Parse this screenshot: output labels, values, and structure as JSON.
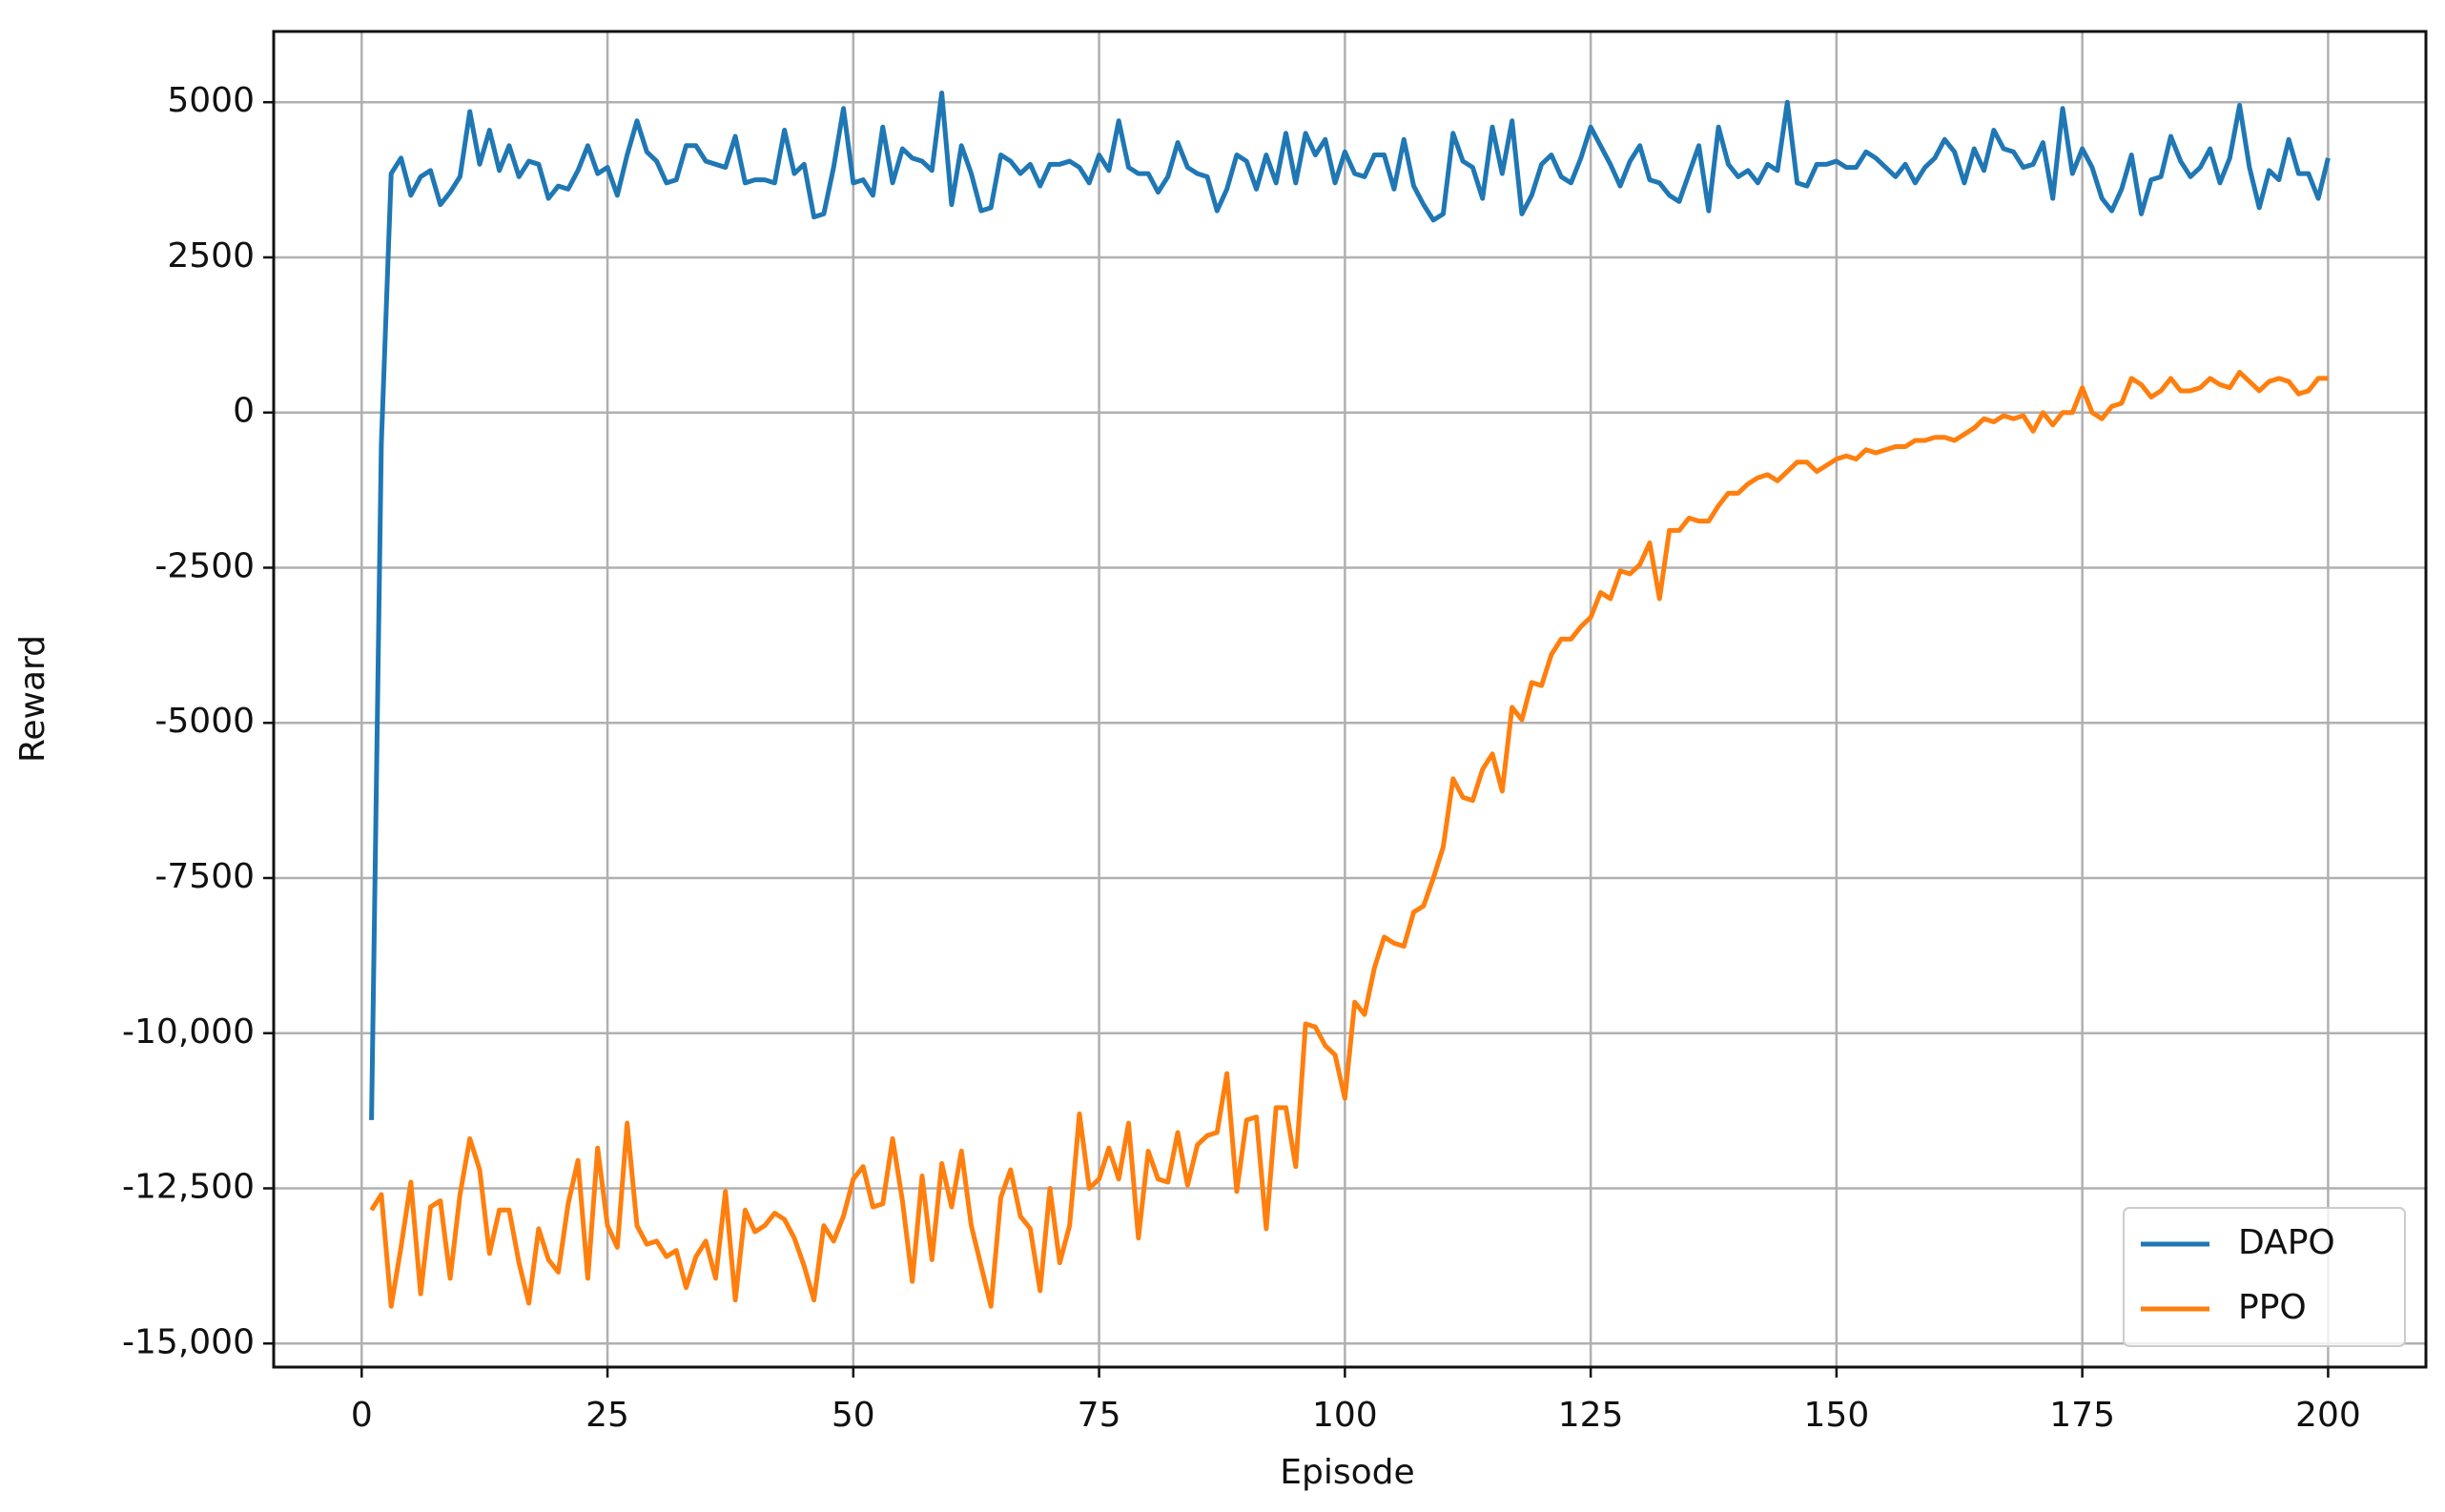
{
  "chart_data": {
    "type": "line",
    "xlabel": "Episode",
    "ylabel": "Reward",
    "x": [
      1,
      2,
      3,
      4,
      5,
      6,
      7,
      8,
      9,
      10,
      11,
      12,
      13,
      14,
      15,
      16,
      17,
      18,
      19,
      20,
      21,
      22,
      23,
      24,
      25,
      26,
      27,
      28,
      29,
      30,
      31,
      32,
      33,
      34,
      35,
      36,
      37,
      38,
      39,
      40,
      41,
      42,
      43,
      44,
      45,
      46,
      47,
      48,
      49,
      50,
      51,
      52,
      53,
      54,
      55,
      56,
      57,
      58,
      59,
      60,
      61,
      62,
      63,
      64,
      65,
      66,
      67,
      68,
      69,
      70,
      71,
      72,
      73,
      74,
      75,
      76,
      77,
      78,
      79,
      80,
      81,
      82,
      83,
      84,
      85,
      86,
      87,
      88,
      89,
      90,
      91,
      92,
      93,
      94,
      95,
      96,
      97,
      98,
      99,
      100,
      101,
      102,
      103,
      104,
      105,
      106,
      107,
      108,
      109,
      110,
      111,
      112,
      113,
      114,
      115,
      116,
      117,
      118,
      119,
      120,
      121,
      122,
      123,
      124,
      125,
      126,
      127,
      128,
      129,
      130,
      131,
      132,
      133,
      134,
      135,
      136,
      137,
      138,
      139,
      140,
      141,
      142,
      143,
      144,
      145,
      146,
      147,
      148,
      149,
      150,
      151,
      152,
      153,
      154,
      155,
      156,
      157,
      158,
      159,
      160,
      161,
      162,
      163,
      164,
      165,
      166,
      167,
      168,
      169,
      170,
      171,
      172,
      173,
      174,
      175,
      176,
      177,
      178,
      179,
      180,
      181,
      182,
      183,
      184,
      185,
      186,
      187,
      188,
      189,
      190,
      191,
      192,
      193,
      194,
      195,
      196,
      197,
      198,
      199,
      200
    ],
    "series": [
      {
        "name": "DAPO",
        "color": "#1f77b4",
        "values": [
          -11400,
          -500,
          3850,
          4100,
          3500,
          3800,
          3900,
          3350,
          3550,
          3800,
          4850,
          4000,
          4550,
          3900,
          4300,
          3800,
          4050,
          4000,
          3450,
          3650,
          3600,
          3900,
          4300,
          3850,
          3950,
          3500,
          4150,
          4700,
          4200,
          4050,
          3700,
          3750,
          4300,
          4300,
          4050,
          4000,
          3950,
          4450,
          3700,
          3750,
          3750,
          3700,
          4550,
          3850,
          4000,
          3150,
          3200,
          3950,
          4900,
          3700,
          3750,
          3500,
          4600,
          3700,
          4250,
          4100,
          4050,
          3900,
          5150,
          3350,
          4300,
          3850,
          3250,
          3300,
          4150,
          4050,
          3850,
          4000,
          3650,
          4000,
          4000,
          4050,
          3950,
          3700,
          4150,
          3900,
          4700,
          3950,
          3850,
          3850,
          3550,
          3800,
          4350,
          3950,
          3850,
          3800,
          3250,
          3600,
          4150,
          4050,
          3600,
          4150,
          3700,
          4500,
          3700,
          4500,
          4150,
          4400,
          3700,
          4200,
          3850,
          3800,
          4150,
          4150,
          3600,
          4400,
          3650,
          3350,
          3100,
          3200,
          4500,
          4050,
          3950,
          3450,
          4600,
          3850,
          4700,
          3200,
          3500,
          4000,
          4150,
          3800,
          3700,
          4100,
          4600,
          4300,
          4000,
          3650,
          4050,
          4300,
          3750,
          3700,
          3500,
          3400,
          3850,
          4300,
          3250,
          4600,
          4000,
          3800,
          3900,
          3700,
          4000,
          3900,
          5000,
          3700,
          3650,
          4000,
          4000,
          4050,
          3950,
          3950,
          4200,
          4100,
          3950,
          3800,
          4000,
          3700,
          3950,
          4100,
          4400,
          4200,
          3700,
          4250,
          3900,
          4550,
          4250,
          4200,
          3950,
          4000,
          4350,
          3450,
          4900,
          3850,
          4250,
          3950,
          3450,
          3250,
          3600,
          4150,
          3200,
          3750,
          3800,
          4450,
          4050,
          3800,
          3950,
          4250,
          3700,
          4100,
          4950,
          3950,
          3300,
          3900,
          3750,
          4400,
          3850,
          3850,
          3450,
          4100
        ]
      },
      {
        "name": "PPO",
        "color": "#ff7f0e",
        "values": [
          -12850,
          -12600,
          -14400,
          -13450,
          -12400,
          -14200,
          -12800,
          -12700,
          -13950,
          -12600,
          -11700,
          -12200,
          -13550,
          -12850,
          -12850,
          -13700,
          -14350,
          -13150,
          -13650,
          -13850,
          -12750,
          -12050,
          -13950,
          -11850,
          -13100,
          -13450,
          -11450,
          -13100,
          -13400,
          -13350,
          -13600,
          -13500,
          -14100,
          -13600,
          -13350,
          -13950,
          -12550,
          -14300,
          -12850,
          -13200,
          -13100,
          -12900,
          -13000,
          -13300,
          -13750,
          -14300,
          -13100,
          -13350,
          -12950,
          -12350,
          -12150,
          -12800,
          -12750,
          -11700,
          -12700,
          -14000,
          -12300,
          -13650,
          -12100,
          -12800,
          -11900,
          -13100,
          -13750,
          -14400,
          -12650,
          -12200,
          -12950,
          -13150,
          -14150,
          -12500,
          -13700,
          -13100,
          -11300,
          -12500,
          -12350,
          -11850,
          -12350,
          -11450,
          -13300,
          -11900,
          -12350,
          -12400,
          -11600,
          -12450,
          -11800,
          -11650,
          -11600,
          -10650,
          -12550,
          -11400,
          -11350,
          -13150,
          -11200,
          -11200,
          -12150,
          -9850,
          -9900,
          -10200,
          -10350,
          -11050,
          -9500,
          -9700,
          -8950,
          -8450,
          -8550,
          -8600,
          -8050,
          -7950,
          -7500,
          -7000,
          -5900,
          -6200,
          -6250,
          -5750,
          -5500,
          -6100,
          -4750,
          -4950,
          -4350,
          -4400,
          -3900,
          -3650,
          -3650,
          -3450,
          -3300,
          -2900,
          -3000,
          -2550,
          -2600,
          -2450,
          -2100,
          -3000,
          -1900,
          -1900,
          -1700,
          -1750,
          -1750,
          -1500,
          -1300,
          -1300,
          -1150,
          -1050,
          -1000,
          -1100,
          -950,
          -800,
          -800,
          -950,
          -850,
          -750,
          -700,
          -750,
          -600,
          -650,
          -600,
          -550,
          -550,
          -450,
          -450,
          -400,
          -400,
          -450,
          -350,
          -250,
          -100,
          -150,
          -50,
          -100,
          -50,
          -300,
          0,
          -200,
          0,
          0,
          400,
          0,
          -100,
          100,
          150,
          550,
          450,
          250,
          350,
          550,
          350,
          350,
          400,
          550,
          450,
          400,
          650,
          500,
          350,
          500,
          550,
          500,
          300,
          350,
          550,
          550
        ]
      }
    ],
    "xlim": [
      -8.95,
      209.95
    ],
    "xticks": [
      0,
      25,
      50,
      75,
      100,
      125,
      150,
      175,
      200
    ],
    "ylim": [
      -15380,
      6140
    ],
    "yticks": [
      {
        "value": -15000,
        "label": "-15,000"
      },
      {
        "value": -12500,
        "label": "-12,500"
      },
      {
        "value": -10000,
        "label": "-10,000"
      },
      -7500,
      -5000,
      -2500,
      0,
      2500,
      5000
    ],
    "grid": true,
    "legend": "lower right"
  }
}
